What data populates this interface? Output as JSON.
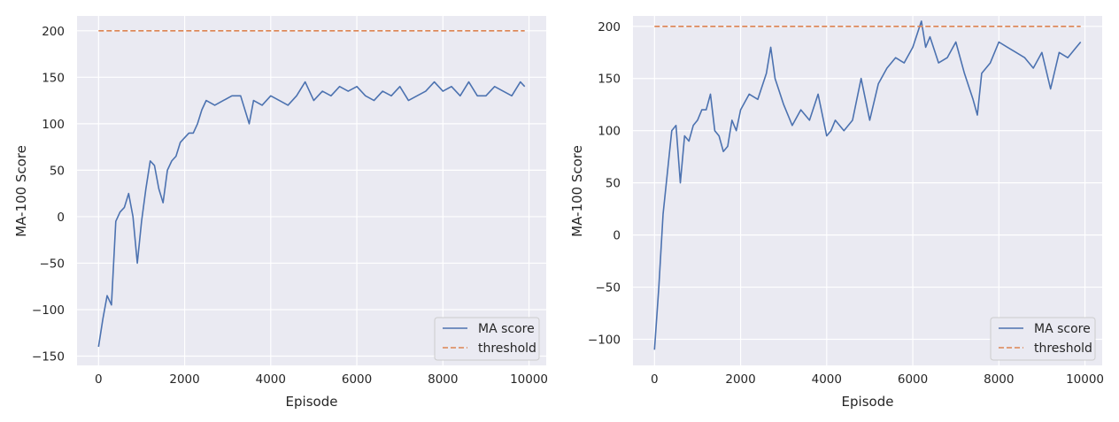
{
  "chart_data": [
    {
      "type": "line",
      "xlabel": "Episode",
      "ylabel": "MA-100 Score",
      "xlim": [
        -500,
        10400
      ],
      "ylim": [
        -160,
        216
      ],
      "xticks": [
        0,
        2000,
        4000,
        6000,
        8000,
        10000
      ],
      "yticks": [
        -150,
        -100,
        -50,
        0,
        50,
        100,
        150,
        200
      ],
      "grid": true,
      "legend": "bottom-right",
      "series": [
        {
          "name": "MA score",
          "color": "#4c72b0",
          "style": "solid",
          "x": [
            0,
            100,
            200,
            300,
            400,
            500,
            600,
            700,
            800,
            900,
            1000,
            1100,
            1200,
            1300,
            1400,
            1500,
            1600,
            1700,
            1800,
            1900,
            2000,
            2100,
            2200,
            2300,
            2400,
            2500,
            2700,
            2900,
            3100,
            3300,
            3500,
            3600,
            3800,
            4000,
            4200,
            4400,
            4600,
            4800,
            5000,
            5200,
            5400,
            5600,
            5800,
            6000,
            6200,
            6400,
            6600,
            6800,
            7000,
            7200,
            7400,
            7600,
            7800,
            8000,
            8200,
            8400,
            8600,
            8800,
            9000,
            9200,
            9400,
            9600,
            9800,
            9900
          ],
          "y": [
            -140,
            -110,
            -85,
            -95,
            -5,
            5,
            10,
            25,
            0,
            -50,
            -5,
            30,
            60,
            55,
            30,
            15,
            50,
            60,
            65,
            80,
            85,
            90,
            90,
            100,
            115,
            125,
            120,
            125,
            130,
            130,
            100,
            125,
            120,
            130,
            125,
            120,
            130,
            145,
            125,
            135,
            130,
            140,
            135,
            140,
            130,
            125,
            135,
            130,
            140,
            125,
            130,
            135,
            145,
            135,
            140,
            130,
            145,
            130,
            130,
            140,
            135,
            130,
            145,
            140
          ]
        },
        {
          "name": "threshold",
          "color": "#dd8452",
          "style": "dashed",
          "x": [
            0,
            9900
          ],
          "y": [
            200,
            200
          ]
        }
      ]
    },
    {
      "type": "line",
      "xlabel": "Episode",
      "ylabel": "MA-100 Score",
      "xlim": [
        -500,
        10400
      ],
      "ylim": [
        -125,
        210
      ],
      "xticks": [
        0,
        2000,
        4000,
        6000,
        8000,
        10000
      ],
      "yticks": [
        -100,
        -50,
        0,
        50,
        100,
        150,
        200
      ],
      "grid": true,
      "legend": "bottom-right",
      "series": [
        {
          "name": "MA score",
          "color": "#4c72b0",
          "style": "solid",
          "x": [
            0,
            100,
            200,
            300,
            400,
            500,
            600,
            700,
            800,
            900,
            1000,
            1100,
            1200,
            1300,
            1400,
            1500,
            1600,
            1700,
            1800,
            1900,
            2000,
            2200,
            2400,
            2600,
            2700,
            2800,
            3000,
            3200,
            3400,
            3600,
            3800,
            4000,
            4100,
            4200,
            4400,
            4600,
            4800,
            5000,
            5200,
            5400,
            5600,
            5800,
            6000,
            6200,
            6300,
            6400,
            6600,
            6800,
            7000,
            7200,
            7400,
            7500,
            7600,
            7800,
            8000,
            8200,
            8400,
            8600,
            8800,
            9000,
            9200,
            9400,
            9600,
            9800,
            9900
          ],
          "y": [
            -110,
            -50,
            20,
            60,
            100,
            105,
            50,
            95,
            90,
            105,
            110,
            120,
            120,
            135,
            100,
            95,
            80,
            85,
            110,
            100,
            120,
            135,
            130,
            155,
            180,
            150,
            125,
            105,
            120,
            110,
            135,
            95,
            100,
            110,
            100,
            110,
            150,
            110,
            145,
            160,
            170,
            165,
            180,
            205,
            180,
            190,
            165,
            170,
            185,
            155,
            130,
            115,
            155,
            165,
            185,
            180,
            175,
            170,
            160,
            175,
            140,
            175,
            170,
            180,
            185
          ]
        },
        {
          "name": "threshold",
          "color": "#dd8452",
          "style": "dashed",
          "x": [
            0,
            9900
          ],
          "y": [
            200,
            200
          ]
        }
      ]
    }
  ]
}
